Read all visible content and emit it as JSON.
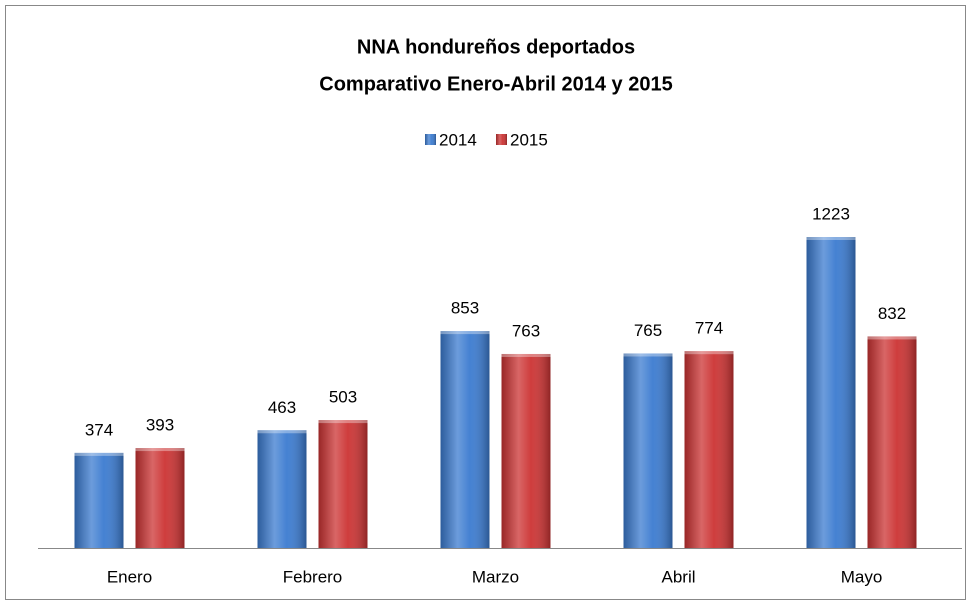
{
  "chart_data": {
    "type": "bar",
    "title": "NNA hondureños deportados",
    "subtitle": "Comparativo Enero-Abril 2014 y 2015",
    "categories": [
      "Enero",
      "Febrero",
      "Marzo",
      "Abril",
      "Mayo"
    ],
    "series": [
      {
        "name": "2014",
        "color": "#3b7bd0",
        "values": [
          374,
          463,
          853,
          765,
          1223
        ]
      },
      {
        "name": "2015",
        "color": "#cc3333",
        "values": [
          393,
          503,
          763,
          774,
          832
        ]
      }
    ],
    "ylim": [
      0,
      1400
    ],
    "legend": "top"
  }
}
